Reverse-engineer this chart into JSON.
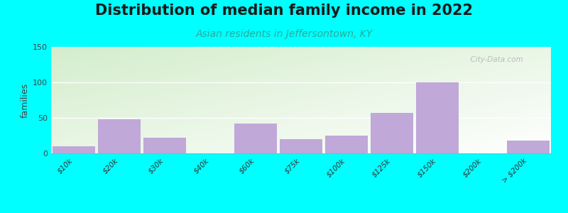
{
  "title": "Distribution of median family income in 2022",
  "subtitle": "Asian residents in Jeffersontown, KY",
  "ylabel": "families",
  "background_color": "#00FFFF",
  "bar_color": "#c0a8d8",
  "bar_edge_color": "#c0a8d8",
  "categories": [
    "$10k",
    "$20k",
    "$30k",
    "$40k",
    "$60k",
    "$75k",
    "$100k",
    "$125k",
    "$150k",
    "$200k",
    "> $200k"
  ],
  "values": [
    10,
    48,
    22,
    0,
    42,
    20,
    25,
    57,
    100,
    0,
    18
  ],
  "ylim": [
    0,
    150
  ],
  "yticks": [
    0,
    50,
    100,
    150
  ],
  "watermark": "  City-Data.com",
  "title_fontsize": 15,
  "subtitle_fontsize": 10,
  "ylabel_fontsize": 9,
  "title_color": "#1a1a1a",
  "subtitle_color": "#2aaa99"
}
